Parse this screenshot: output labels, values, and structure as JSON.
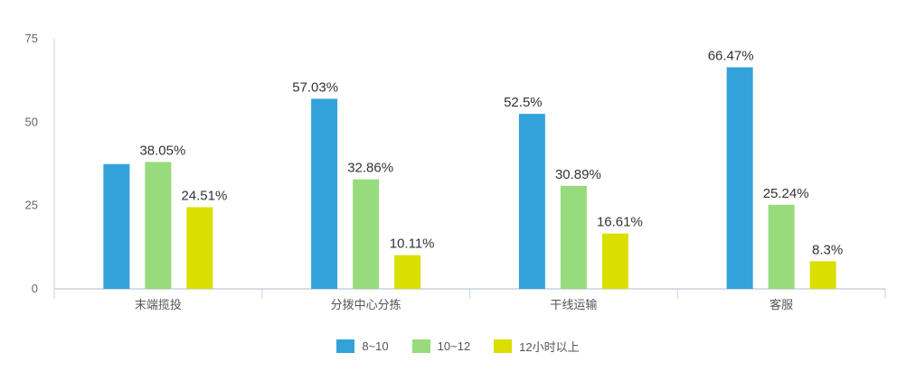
{
  "chart_data": {
    "type": "bar",
    "title": "",
    "xlabel": "",
    "ylabel": "",
    "ylim": [
      0,
      75
    ],
    "yticks": [
      0,
      25,
      50,
      75
    ],
    "grid": false,
    "legend_position": "bottom",
    "categories": [
      "末端揽投",
      "分拨中心分拣",
      "干线运输",
      "客服"
    ],
    "series": [
      {
        "name": "8~10",
        "color": "#34a2da",
        "values": [
          37.44,
          57.03,
          52.5,
          66.47
        ],
        "labels": [
          "",
          "57.03%",
          "52.5%",
          "66.47%"
        ]
      },
      {
        "name": "10~12",
        "color": "#97db7d",
        "values": [
          38.05,
          32.86,
          30.89,
          25.24
        ],
        "labels": [
          "38.05%",
          "32.86%",
          "30.89%",
          "25.24%"
        ]
      },
      {
        "name": "12小时以上",
        "color": "#dadf00",
        "values": [
          24.51,
          10.11,
          16.61,
          8.3
        ],
        "labels": [
          "24.51%",
          "10.11%",
          "16.61%",
          "8.3%"
        ]
      }
    ]
  },
  "legend": {
    "items": [
      {
        "label": "8~10",
        "color": "#34a2da"
      },
      {
        "label": "10~12",
        "color": "#97db7d"
      },
      {
        "label": "12小时以上",
        "color": "#dadf00"
      }
    ]
  }
}
